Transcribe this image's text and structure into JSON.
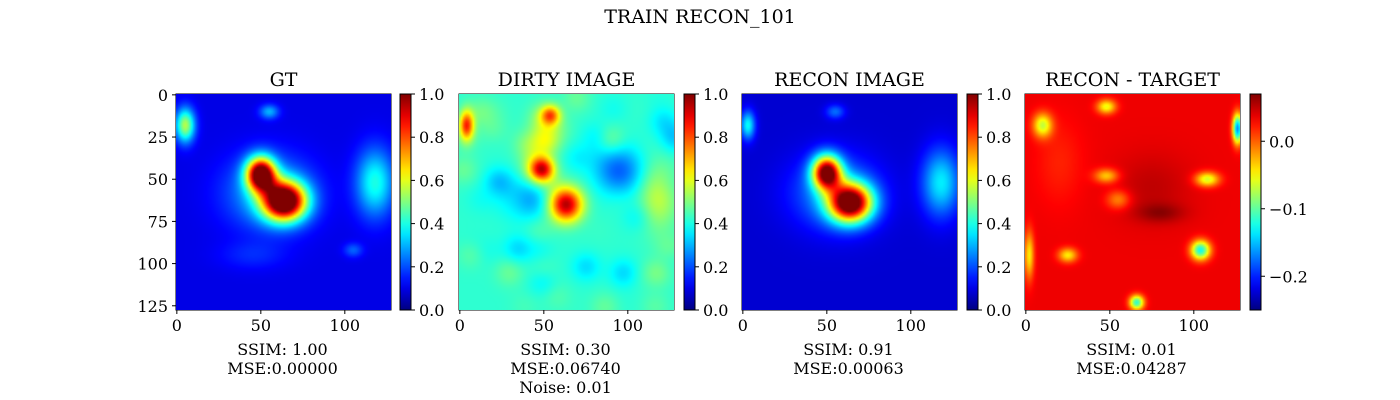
{
  "figure_title": "TRAIN RECON_101",
  "chart_data": [
    {
      "type": "heatmap",
      "title": "GT",
      "colormap": "jet",
      "xlim": [
        0,
        128
      ],
      "ylim": [
        128,
        0
      ],
      "xticks": [
        "0",
        "50",
        "100"
      ],
      "yticks": [
        "0",
        "25",
        "50",
        "75",
        "100",
        "125"
      ],
      "clim": [
        0.0,
        1.0
      ],
      "colorbar_ticks": [
        "0.0",
        "0.2",
        "0.4",
        "0.6",
        "0.8",
        "1.0"
      ],
      "footer": [
        "SSIM: 1.00",
        "MSE:0.00000"
      ],
      "background": 0.1,
      "blobs": [
        {
          "x": 50,
          "y": 47,
          "sx": 6,
          "sy": 7,
          "amp": 0.95
        },
        {
          "x": 64,
          "y": 63,
          "sx": 9,
          "sy": 8,
          "amp": 1.0
        },
        {
          "x": 5,
          "y": 18,
          "sx": 4,
          "sy": 7,
          "amp": 0.45
        },
        {
          "x": 55,
          "y": 58,
          "sx": 18,
          "sy": 15,
          "amp": 0.22
        },
        {
          "x": 118,
          "y": 52,
          "sx": 8,
          "sy": 14,
          "amp": 0.3
        },
        {
          "x": 55,
          "y": 10,
          "sx": 4,
          "sy": 3,
          "amp": 0.2
        },
        {
          "x": 105,
          "y": 92,
          "sx": 4,
          "sy": 3,
          "amp": 0.12
        },
        {
          "x": 45,
          "y": 95,
          "sx": 14,
          "sy": 6,
          "amp": 0.06
        }
      ]
    },
    {
      "type": "heatmap",
      "title": "DIRTY IMAGE",
      "colormap": "jet",
      "xlim": [
        0,
        128
      ],
      "ylim": [
        128,
        0
      ],
      "xticks": [
        "0",
        "50",
        "100"
      ],
      "yticks": [],
      "clim": [
        0.0,
        1.0
      ],
      "colorbar_ticks": [
        "0.0",
        "0.2",
        "0.4",
        "0.6",
        "0.8",
        "1.0"
      ],
      "footer": [
        "SSIM: 0.30",
        "MSE:0.06740",
        "Noise: 0.01"
      ],
      "background": 0.42,
      "noise": 0.08,
      "blobs": [
        {
          "x": 49,
          "y": 44,
          "sx": 5,
          "sy": 5,
          "amp": 0.45
        },
        {
          "x": 63,
          "y": 65,
          "sx": 7,
          "sy": 7,
          "amp": 0.55
        },
        {
          "x": 4,
          "y": 18,
          "sx": 3,
          "sy": 6,
          "amp": 0.42
        },
        {
          "x": 54,
          "y": 12,
          "sx": 4,
          "sy": 4,
          "amp": 0.32
        },
        {
          "x": 95,
          "y": 45,
          "sx": 10,
          "sy": 10,
          "amp": -0.2
        },
        {
          "x": 40,
          "y": 62,
          "sx": 10,
          "sy": 8,
          "amp": -0.15
        },
        {
          "x": 118,
          "y": 60,
          "sx": 8,
          "sy": 14,
          "amp": 0.15
        }
      ]
    },
    {
      "type": "heatmap",
      "title": "RECON IMAGE",
      "colormap": "jet",
      "xlim": [
        0,
        128
      ],
      "ylim": [
        128,
        0
      ],
      "xticks": [
        "0",
        "50",
        "100"
      ],
      "yticks": [],
      "clim": [
        0.0,
        1.0
      ],
      "colorbar_ticks": [
        "0.0",
        "0.2",
        "0.4",
        "0.6",
        "0.8",
        "1.0"
      ],
      "footer": [
        "SSIM: 0.91",
        "MSE:0.00063"
      ],
      "background": 0.08,
      "blobs": [
        {
          "x": 50,
          "y": 46,
          "sx": 6,
          "sy": 7,
          "amp": 0.9
        },
        {
          "x": 64,
          "y": 64,
          "sx": 9,
          "sy": 8,
          "amp": 0.95
        },
        {
          "x": 3,
          "y": 18,
          "sx": 3,
          "sy": 6,
          "amp": 0.3
        },
        {
          "x": 55,
          "y": 58,
          "sx": 18,
          "sy": 15,
          "amp": 0.2
        },
        {
          "x": 118,
          "y": 52,
          "sx": 8,
          "sy": 14,
          "amp": 0.28
        },
        {
          "x": 55,
          "y": 10,
          "sx": 4,
          "sy": 3,
          "amp": 0.15
        }
      ]
    },
    {
      "type": "heatmap",
      "title": "RECON - TARGET",
      "colormap": "jet",
      "xlim": [
        0,
        128
      ],
      "ylim": [
        128,
        0
      ],
      "xticks": [
        "0",
        "50",
        "100"
      ],
      "yticks": [],
      "clim": [
        -0.25,
        0.07
      ],
      "colorbar_ticks": [
        "0.0",
        "−0.1",
        "−0.2"
      ],
      "colorbar_tick_values": [
        0.0,
        -0.1,
        -0.2
      ],
      "footer": [
        "SSIM: 0.01",
        "MSE:0.04287"
      ],
      "background": 0.035,
      "blobs": [
        {
          "x": 75,
          "y": 55,
          "sx": 16,
          "sy": 14,
          "amp": 0.015
        },
        {
          "x": 80,
          "y": 70,
          "sx": 10,
          "sy": 4,
          "amp": 0.025
        },
        {
          "x": 10,
          "y": 18,
          "sx": 4,
          "sy": 5,
          "amp": -0.1
        },
        {
          "x": 48,
          "y": 7,
          "sx": 4,
          "sy": 3,
          "amp": -0.09
        },
        {
          "x": 48,
          "y": 48,
          "sx": 5,
          "sy": 3,
          "amp": -0.07
        },
        {
          "x": 55,
          "y": 62,
          "sx": 5,
          "sy": 4,
          "amp": -0.05
        },
        {
          "x": 108,
          "y": 50,
          "sx": 5,
          "sy": 3,
          "amp": -0.1
        },
        {
          "x": 104,
          "y": 92,
          "sx": 4,
          "sy": 4,
          "amp": -0.16
        },
        {
          "x": 25,
          "y": 95,
          "sx": 4,
          "sy": 3,
          "amp": -0.08
        },
        {
          "x": 66,
          "y": 123,
          "sx": 3,
          "sy": 3,
          "amp": -0.15
        },
        {
          "x": 20,
          "y": 40,
          "sx": 10,
          "sy": 18,
          "amp": -0.015
        },
        {
          "x": 126,
          "y": 20,
          "sx": 2,
          "sy": 6,
          "amp": -0.2
        },
        {
          "x": 2,
          "y": 95,
          "sx": 2,
          "sy": 10,
          "amp": -0.08
        }
      ]
    }
  ]
}
